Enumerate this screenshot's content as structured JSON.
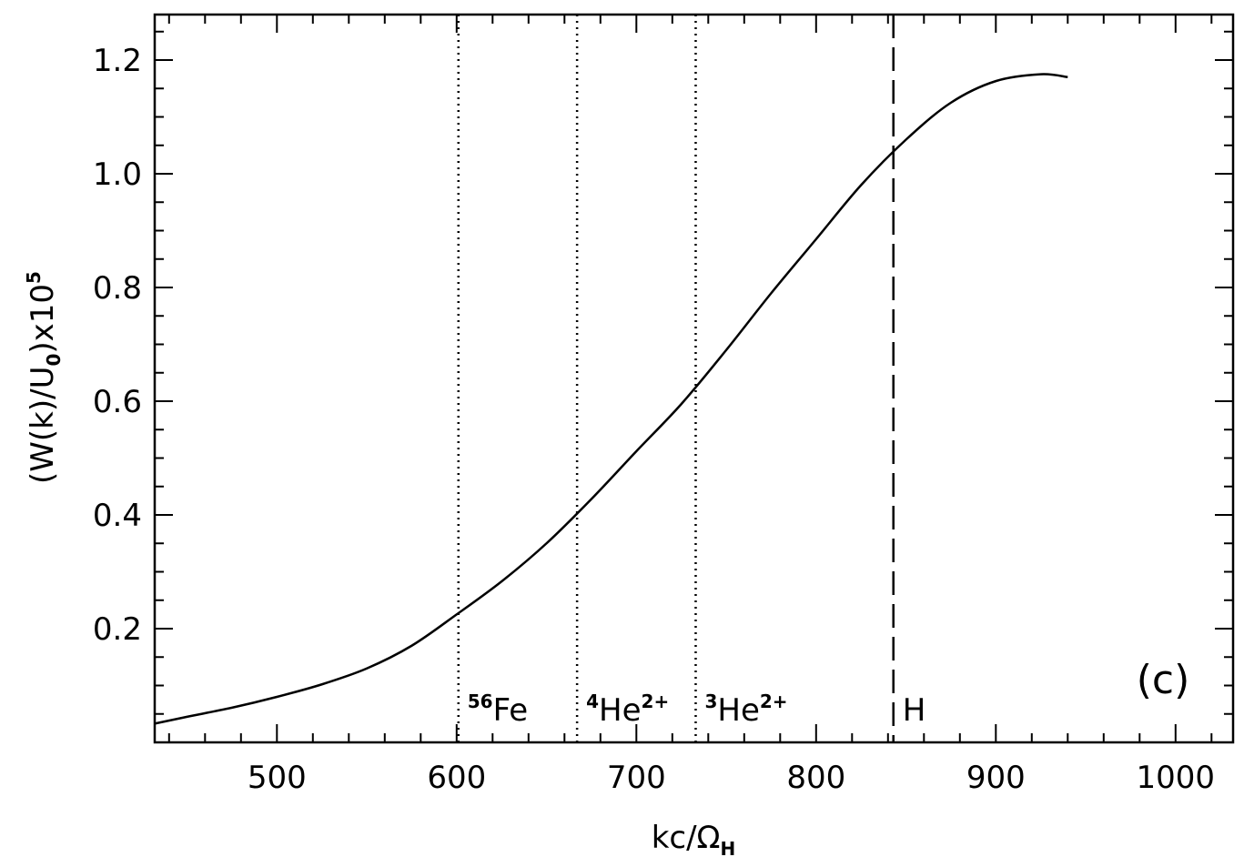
{
  "chart_data": {
    "type": "line",
    "title": "",
    "xlabel": {
      "base": "kc/Ω",
      "sub": "H"
    },
    "ylabel": {
      "text": "(W(k)/U",
      "sub": "0",
      "rest": ")x10",
      "sup": "5"
    },
    "xlim": [
      432,
      1032
    ],
    "ylim": [
      0.0,
      1.28
    ],
    "xticks": [
      500,
      600,
      700,
      800,
      900,
      1000
    ],
    "xtick_labels": [
      "500",
      "600",
      "700",
      "800",
      "900",
      "1000"
    ],
    "yticks": [
      0.2,
      0.4,
      0.6,
      0.8,
      1.0,
      1.2
    ],
    "ytick_labels": [
      "0.2",
      "0.4",
      "0.6",
      "0.8",
      "1.0",
      "1.2"
    ],
    "grid": false,
    "panel_label": "(c)",
    "series": [
      {
        "x": [
          432,
          450,
          475,
          500,
          525,
          550,
          575,
          600,
          625,
          650,
          675,
          700,
          725,
          750,
          775,
          800,
          825,
          850,
          875,
          900,
          925,
          940
        ],
        "y": [
          0.033,
          0.045,
          0.061,
          0.08,
          0.102,
          0.13,
          0.17,
          0.225,
          0.283,
          0.35,
          0.428,
          0.512,
          0.595,
          0.69,
          0.79,
          0.885,
          0.98,
          1.06,
          1.125,
          1.163,
          1.175,
          1.17
        ]
      }
    ],
    "markers": [
      {
        "x": 601,
        "style": "dotted",
        "sup": "56",
        "label": "Fe",
        "sup2": ""
      },
      {
        "x": 667,
        "style": "dotted",
        "sup": "4",
        "label": "He",
        "sup2": "2+"
      },
      {
        "x": 733,
        "style": "dotted",
        "sup": "3",
        "label": "He",
        "sup2": "2+"
      },
      {
        "x": 843,
        "style": "dashed",
        "sup": "",
        "label": "H",
        "sup2": ""
      }
    ]
  }
}
